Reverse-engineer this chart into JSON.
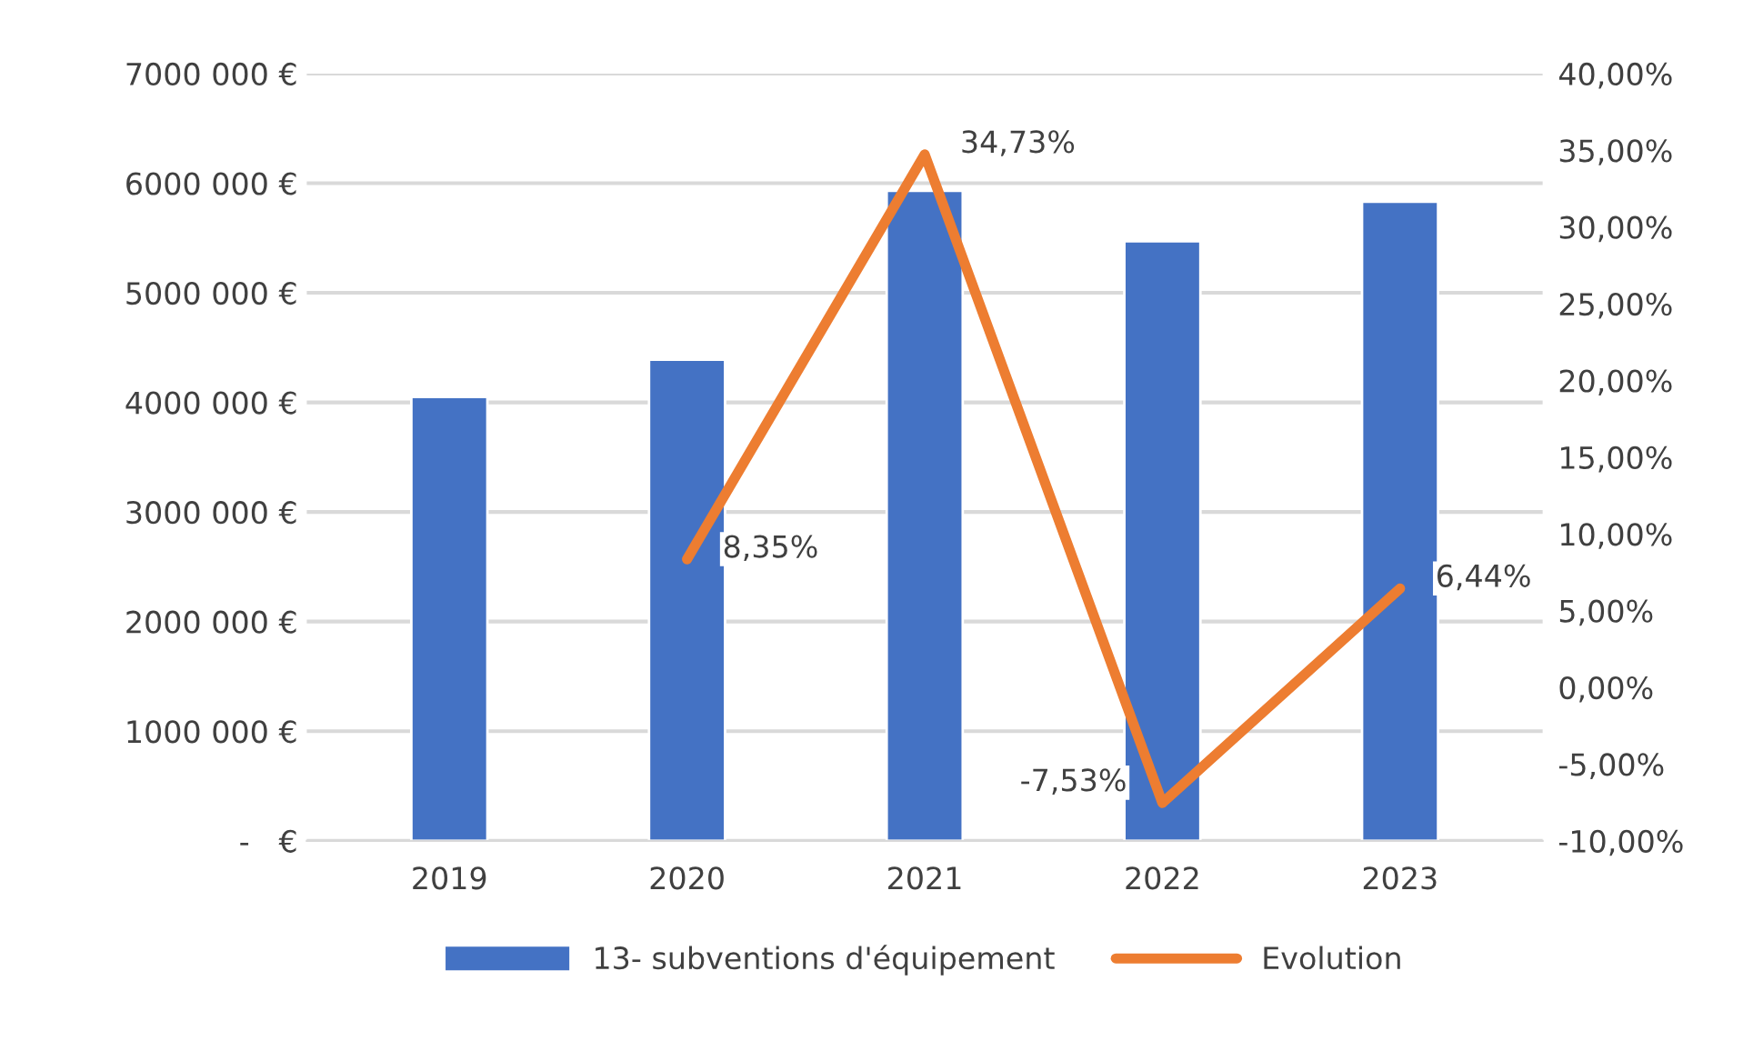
{
  "chart_data": {
    "type": "bar",
    "categories": [
      "2019",
      "2020",
      "2021",
      "2022",
      "2023"
    ],
    "series": [
      {
        "name": "13- subventions d'équipement",
        "color": "#4472c4",
        "values": [
          4050000,
          4390000,
          5930000,
          5470000,
          5830000
        ]
      },
      {
        "name": "Evolution",
        "type": "line",
        "axis": "y2",
        "color": "#ed7d31",
        "values": [
          null,
          8.35,
          34.73,
          -7.53,
          6.44
        ],
        "value_labels": [
          null,
          "8,35%",
          "34,73%",
          "-7,53%",
          "6,44%"
        ]
      }
    ],
    "ylim": [
      0,
      7000000
    ],
    "yticks": [
      {
        "value": 0,
        "label": "-   €"
      },
      {
        "value": 1000000,
        "label": "1000 000 €"
      },
      {
        "value": 2000000,
        "label": "2000 000 €"
      },
      {
        "value": 3000000,
        "label": "3000 000 €"
      },
      {
        "value": 4000000,
        "label": "4000 000 €"
      },
      {
        "value": 5000000,
        "label": "5000 000 €"
      },
      {
        "value": 6000000,
        "label": "6000 000 €"
      },
      {
        "value": 7000000,
        "label": "7000 000 €"
      }
    ],
    "y2lim": [
      -10,
      40
    ],
    "y2ticks": [
      {
        "value": -10,
        "label": "-10,00%"
      },
      {
        "value": -5,
        "label": "-5,00%"
      },
      {
        "value": 0,
        "label": "0,00%"
      },
      {
        "value": 5,
        "label": "5,00%"
      },
      {
        "value": 10,
        "label": "10,00%"
      },
      {
        "value": 15,
        "label": "15,00%"
      },
      {
        "value": 20,
        "label": "20,00%"
      },
      {
        "value": 25,
        "label": "25,00%"
      },
      {
        "value": 30,
        "label": "30,00%"
      },
      {
        "value": 35,
        "label": "35,00%"
      },
      {
        "value": 40,
        "label": "40,00%"
      }
    ],
    "grid": "y",
    "legend": "bottom"
  }
}
